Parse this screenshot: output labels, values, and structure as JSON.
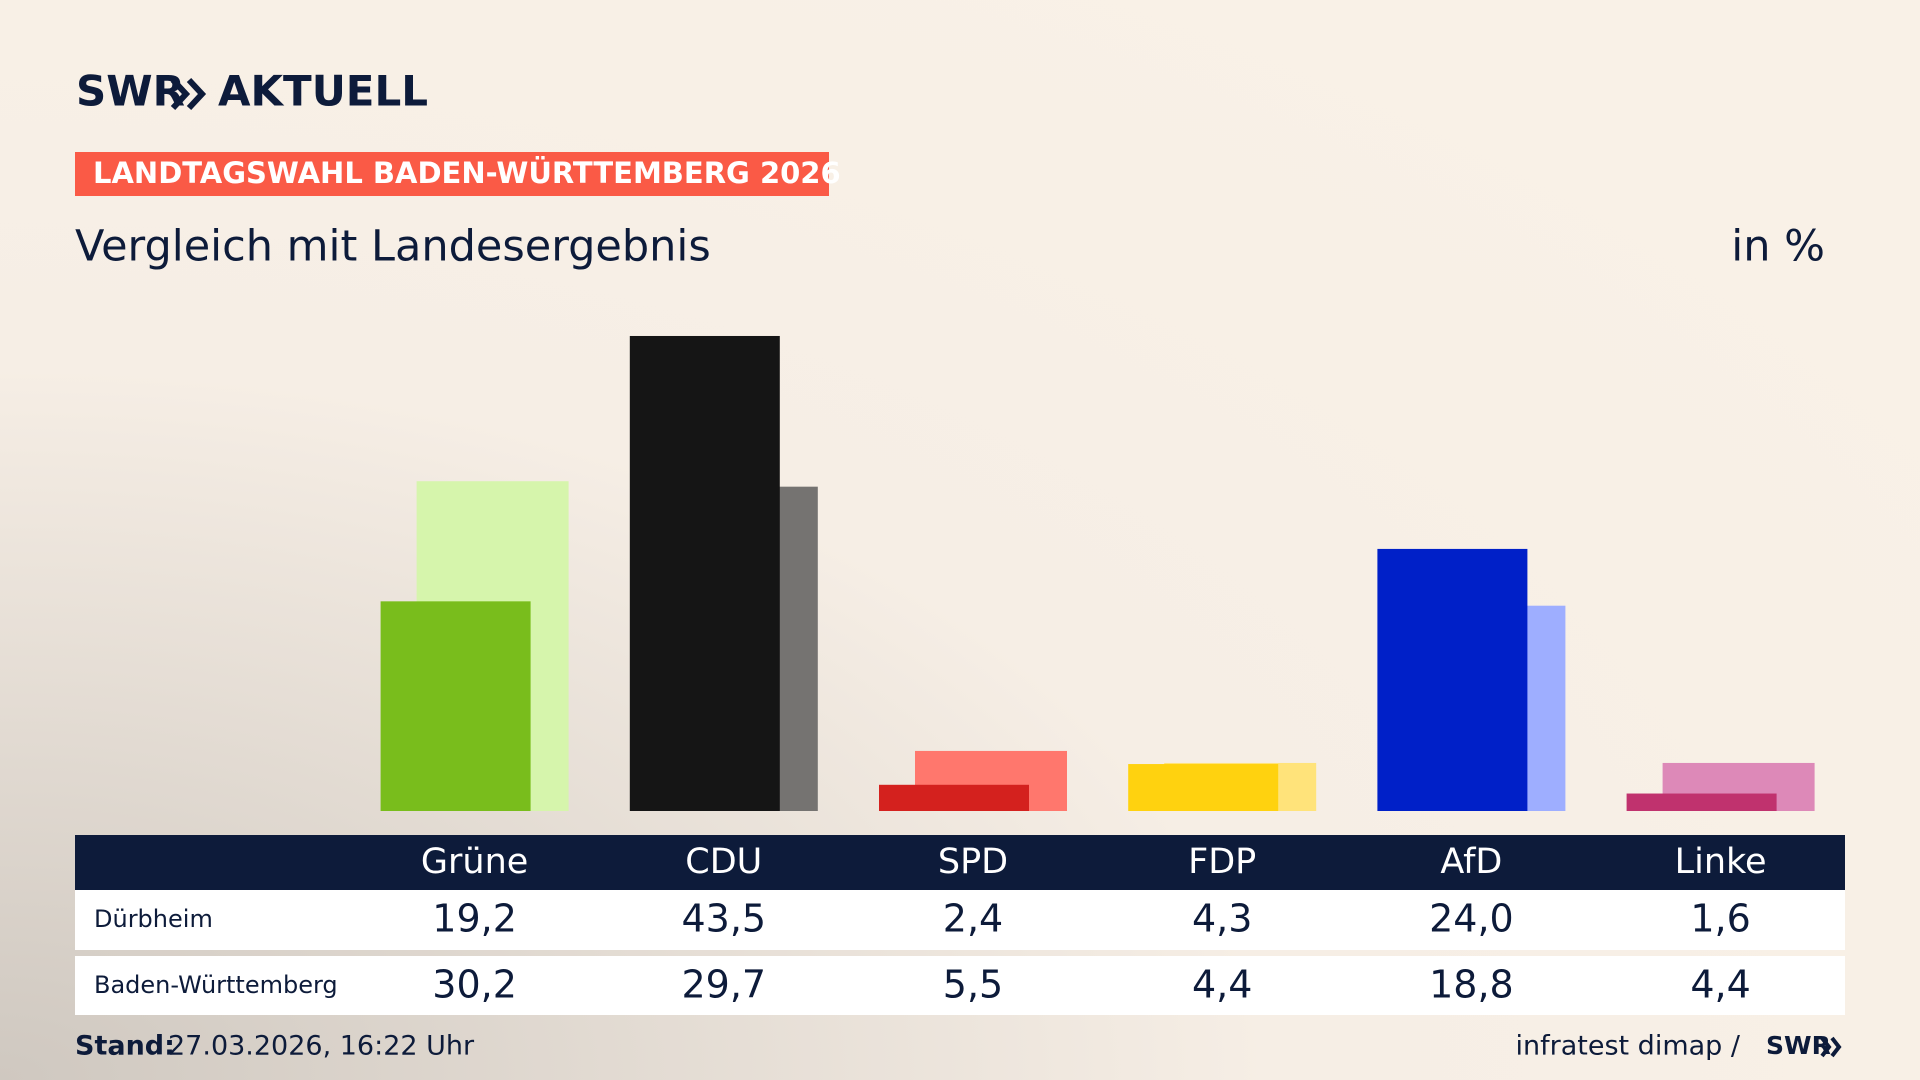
{
  "brand": {
    "name": "SWR",
    "product": "AKTUELL"
  },
  "chart_data": {
    "type": "bar",
    "kicker": "LANDTAGSWAHL BADEN-WÜRTTEMBERG 2026",
    "title": "Vergleich mit Landesergebnis",
    "unit": "in %",
    "categories": [
      "Grüne",
      "CDU",
      "SPD",
      "FDP",
      "AfD",
      "Linke"
    ],
    "series": [
      {
        "name": "Dürbheim",
        "values": [
          19.2,
          43.5,
          2.4,
          4.3,
          24.0,
          1.6
        ],
        "value_labels": [
          "19,2",
          "43,5",
          "2,4",
          "4,3",
          "24,0",
          "1,6"
        ],
        "colors": [
          "#79bd1c",
          "#151515",
          "#d4211e",
          "#ffd20f",
          "#0020c8",
          "#c0326e"
        ]
      },
      {
        "name": "Baden-Württemberg",
        "values": [
          30.2,
          29.7,
          5.5,
          4.4,
          18.8,
          4.4
        ],
        "value_labels": [
          "30,2",
          "29,7",
          "5,5",
          "4,4",
          "18,8",
          "4,4"
        ],
        "colors": [
          "#d6f5ac",
          "#757371",
          "#ff776d",
          "#ffe37a",
          "#9eaeff",
          "#dd89b8"
        ]
      }
    ]
  },
  "footer": {
    "label": "Stand:",
    "date": "27.03.2026, 16:22 Uhr",
    "source": "infratest dimap /",
    "logo": "SWR"
  }
}
